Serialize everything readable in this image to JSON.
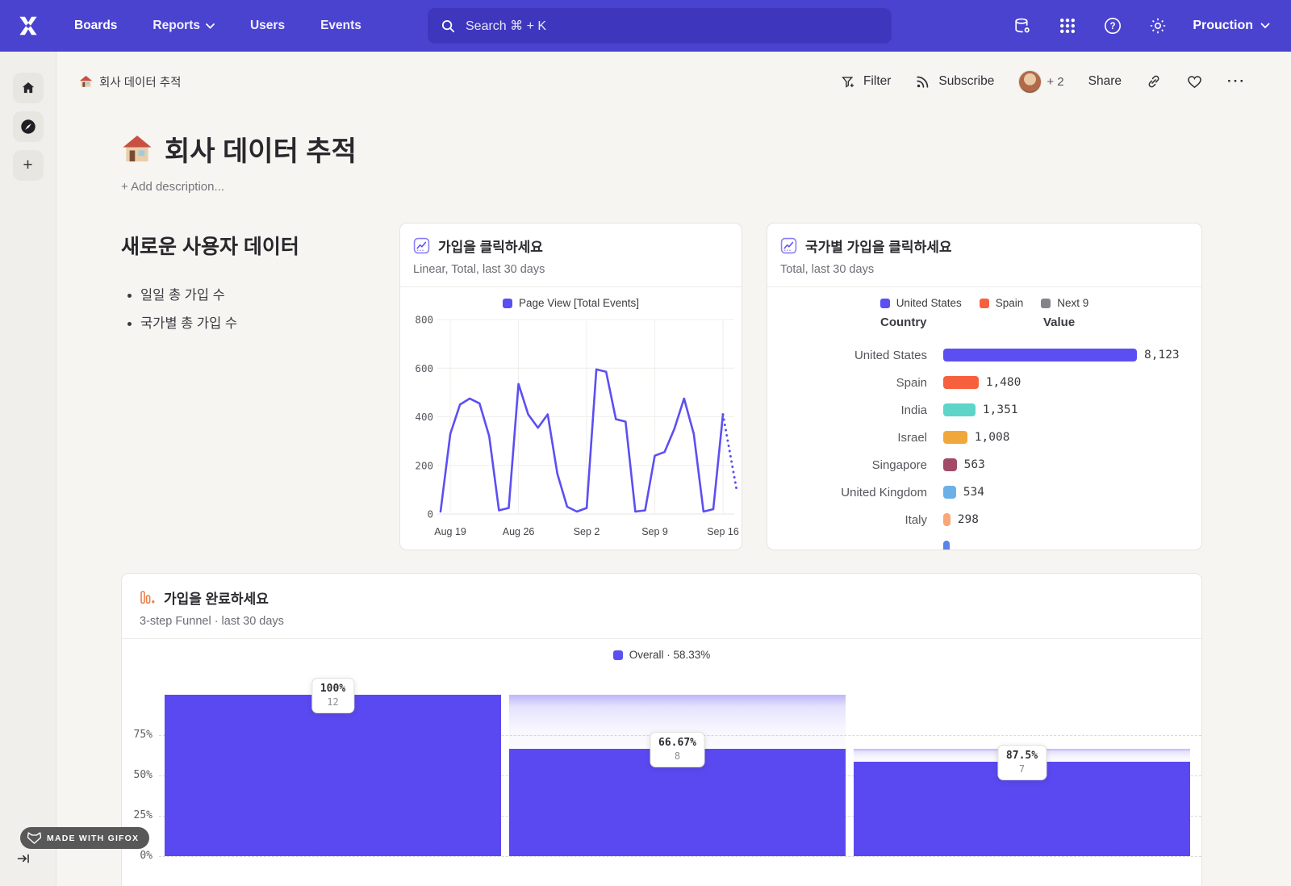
{
  "nav": {
    "links": [
      {
        "label": "Boards"
      },
      {
        "label": "Reports"
      },
      {
        "label": "Users"
      },
      {
        "label": "Events"
      }
    ],
    "search_placeholder": "Search  ⌘ + K",
    "env_label": "Prouction"
  },
  "breadcrumb": {
    "title": "회사 데이터 추적"
  },
  "toolbar": {
    "filter": "Filter",
    "subscribe": "Subscribe",
    "collab_count": "+ 2",
    "share": "Share",
    "more": "···"
  },
  "page": {
    "title": "회사 데이터 추적",
    "add_description": "+ Add description..."
  },
  "text_tile": {
    "heading": "새로운 사용자 데이터",
    "bullets": [
      "일일 총 가입 수",
      "국가별 총 가입 수"
    ]
  },
  "chart_data": [
    {
      "type": "line",
      "title": "가입을 클릭하세요",
      "subtitle": "Linear, Total, last 30 days",
      "series_name": "Page View [Total Events]",
      "legend": [
        {
          "label": "Page View [Total Events]",
          "color": "#5b4ff2"
        }
      ],
      "ylim": [
        0,
        800
      ],
      "y_ticks": [
        0,
        200,
        400,
        600,
        800
      ],
      "x_labels": [
        "Aug 19",
        "Aug 26",
        "Sep 2",
        "Sep 9",
        "Sep 16"
      ],
      "x_label_days": [
        1,
        8,
        15,
        22,
        29
      ],
      "x_start": "Aug 18",
      "values": [
        10,
        330,
        450,
        475,
        455,
        320,
        15,
        25,
        535,
        410,
        355,
        410,
        165,
        30,
        10,
        25,
        595,
        585,
        390,
        380,
        10,
        15,
        240,
        255,
        350,
        475,
        330,
        10,
        20,
        410
      ],
      "projection": {
        "days": 1.4,
        "value": 100
      },
      "line_color": "#5b4ff2"
    },
    {
      "type": "bar",
      "title": "국가별 가입을 클릭하세요",
      "subtitle": "Total, last 30 days",
      "legend": [
        {
          "label": "United States",
          "color": "#5b4ff2"
        },
        {
          "label": "Spain",
          "color": "#f7603c"
        },
        {
          "label": "Next 9",
          "color": "#83838a"
        }
      ],
      "columns": [
        "Country",
        "Value"
      ],
      "rows": [
        {
          "label": "United States",
          "value": 8123,
          "display": "8,123",
          "color": "#5b4ff2"
        },
        {
          "label": "Spain",
          "value": 1480,
          "display": "1,480",
          "color": "#f7603c"
        },
        {
          "label": "India",
          "value": 1351,
          "display": "1,351",
          "color": "#5ed5c8"
        },
        {
          "label": "Israel",
          "value": 1008,
          "display": "1,008",
          "color": "#f0a83c"
        },
        {
          "label": "Singapore",
          "value": 563,
          "display": "563",
          "color": "#a34a68"
        },
        {
          "label": "United Kingdom",
          "value": 534,
          "display": "534",
          "color": "#6cb0e8"
        },
        {
          "label": "Italy",
          "value": 298,
          "display": "298",
          "color": "#f9a779"
        }
      ],
      "clipped_row": {
        "color": "#5b82e8"
      }
    },
    {
      "type": "funnel",
      "title": "가입을 완료하세요",
      "subtitle": "3-step Funnel · last 30 days",
      "legend": [
        {
          "label": "Overall · 58.33%",
          "color": "#5b4ff2"
        }
      ],
      "y_ticks": [
        "75%",
        "50%",
        "25%",
        "0%"
      ],
      "steps": [
        {
          "conversion": "100%",
          "count": 12,
          "solid_pct": 100,
          "ghost_pct": 100
        },
        {
          "conversion": "66.67%",
          "count": 8,
          "solid_pct": 66.67,
          "ghost_pct": 100
        },
        {
          "conversion": "87.5%",
          "count": 7,
          "solid_pct": 58.33,
          "ghost_pct": 66.67
        }
      ],
      "bar_color": "#5a49f0"
    }
  ],
  "gifox": {
    "label": "MADE WITH GIFOX"
  },
  "colors": {
    "nav": "#4a43cf",
    "accent": "#5b4ff2",
    "bg": "#f7f5f1"
  }
}
